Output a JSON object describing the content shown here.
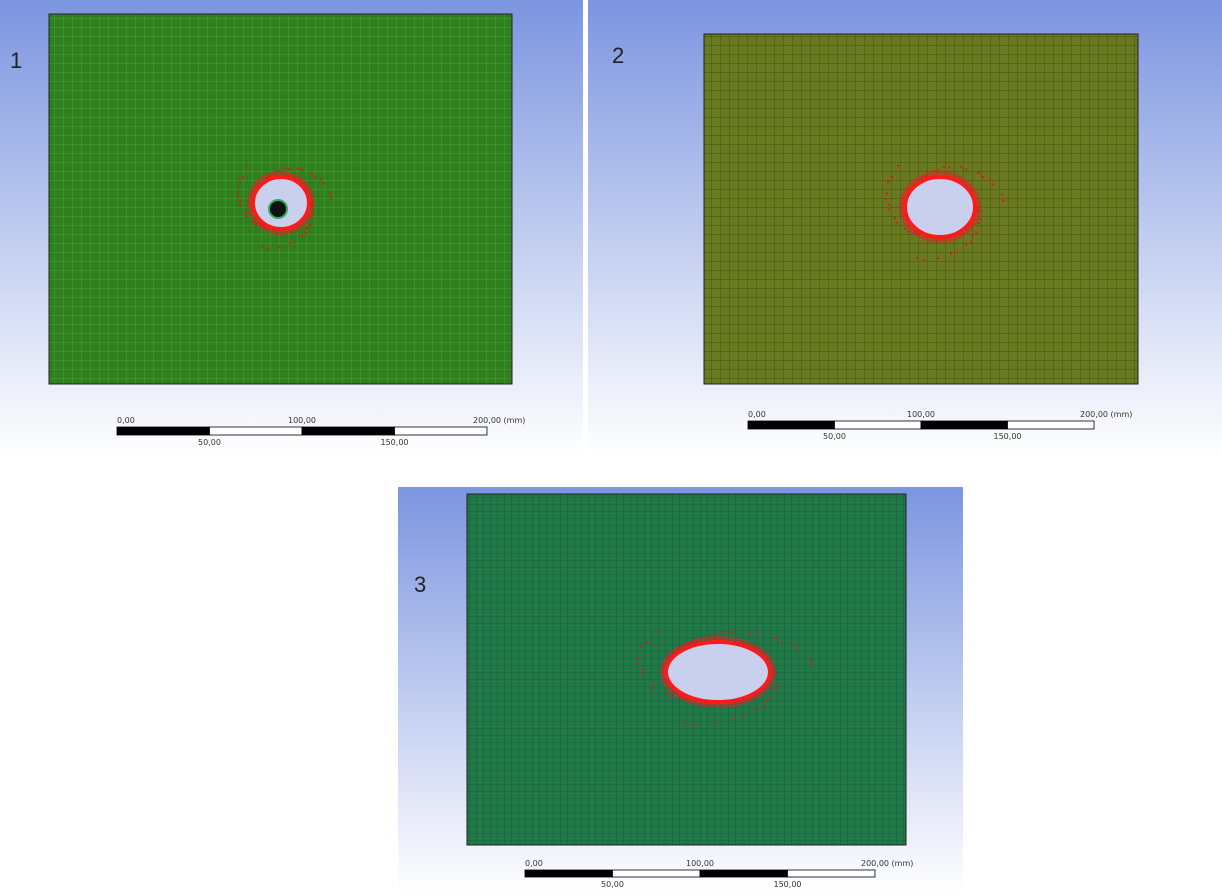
{
  "panels": [
    {
      "label": "1",
      "scale": {
        "start": "0,00",
        "mid": "100,00",
        "end": "200,00 (mm)",
        "quarter": "50,00",
        "three_quarter": "150,00"
      }
    },
    {
      "label": "2",
      "scale": {
        "start": "0,00",
        "mid": "100,00",
        "end": "200,00 (mm)",
        "quarter": "50,00",
        "three_quarter": "150,00"
      }
    },
    {
      "label": "3",
      "scale": {
        "start": "0,00",
        "mid": "100,00",
        "end": "200,00 (mm)",
        "quarter": "50,00",
        "three_quarter": "150,00"
      }
    }
  ]
}
